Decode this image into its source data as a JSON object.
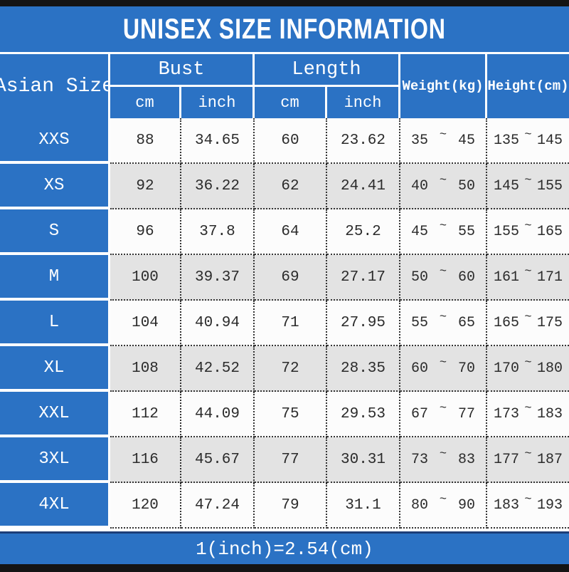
{
  "title": "UNISEX SIZE INFORMATION",
  "footer_note": "1(inch)=2.54(cm)",
  "colors": {
    "accent_blue": "#2b72c4",
    "row_alt_gray": "#e3e3e3",
    "row_white": "#fcfcfc",
    "bar_black": "#141414",
    "text_white": "#ffffff",
    "text_dark": "#2b2b2b"
  },
  "table": {
    "size_header": "Asian Size",
    "bust_header": "Bust",
    "length_header": "Length",
    "weight_header": "Weight(kg)",
    "height_header": "Height(cm)",
    "unit_cm": "cm",
    "unit_inch": "inch",
    "range_separator": "~",
    "rows": [
      {
        "size": "XXS",
        "bust_cm": "88",
        "bust_inch": "34.65",
        "length_cm": "60",
        "length_inch": "23.62",
        "weight_min": "35",
        "weight_max": "45",
        "height_min": "135",
        "height_max": "145"
      },
      {
        "size": "XS",
        "bust_cm": "92",
        "bust_inch": "36.22",
        "length_cm": "62",
        "length_inch": "24.41",
        "weight_min": "40",
        "weight_max": "50",
        "height_min": "145",
        "height_max": "155"
      },
      {
        "size": "S",
        "bust_cm": "96",
        "bust_inch": "37.8",
        "length_cm": "64",
        "length_inch": "25.2",
        "weight_min": "45",
        "weight_max": "55",
        "height_min": "155",
        "height_max": "165"
      },
      {
        "size": "M",
        "bust_cm": "100",
        "bust_inch": "39.37",
        "length_cm": "69",
        "length_inch": "27.17",
        "weight_min": "50",
        "weight_max": "60",
        "height_min": "161",
        "height_max": "171"
      },
      {
        "size": "L",
        "bust_cm": "104",
        "bust_inch": "40.94",
        "length_cm": "71",
        "length_inch": "27.95",
        "weight_min": "55",
        "weight_max": "65",
        "height_min": "165",
        "height_max": "175"
      },
      {
        "size": "XL",
        "bust_cm": "108",
        "bust_inch": "42.52",
        "length_cm": "72",
        "length_inch": "28.35",
        "weight_min": "60",
        "weight_max": "70",
        "height_min": "170",
        "height_max": "180"
      },
      {
        "size": "XXL",
        "bust_cm": "112",
        "bust_inch": "44.09",
        "length_cm": "75",
        "length_inch": "29.53",
        "weight_min": "67",
        "weight_max": "77",
        "height_min": "173",
        "height_max": "183"
      },
      {
        "size": "3XL",
        "bust_cm": "116",
        "bust_inch": "45.67",
        "length_cm": "77",
        "length_inch": "30.31",
        "weight_min": "73",
        "weight_max": "83",
        "height_min": "177",
        "height_max": "187"
      },
      {
        "size": "4XL",
        "bust_cm": "120",
        "bust_inch": "47.24",
        "length_cm": "79",
        "length_inch": "31.1",
        "weight_min": "80",
        "weight_max": "90",
        "height_min": "183",
        "height_max": "193"
      }
    ]
  },
  "chart_data": {
    "type": "table",
    "title": "UNISEX SIZE INFORMATION",
    "note": "1(inch)=2.54(cm)",
    "columns": [
      "Asian Size",
      "Bust cm",
      "Bust inch",
      "Length cm",
      "Length inch",
      "Weight(kg)",
      "Height(cm)"
    ],
    "rows": [
      [
        "XXS",
        88,
        34.65,
        60,
        23.62,
        "35~45",
        "135~145"
      ],
      [
        "XS",
        92,
        36.22,
        62,
        24.41,
        "40~50",
        "145~155"
      ],
      [
        "S",
        96,
        37.8,
        64,
        25.2,
        "45~55",
        "155~165"
      ],
      [
        "M",
        100,
        39.37,
        69,
        27.17,
        "50~60",
        "161~171"
      ],
      [
        "L",
        104,
        40.94,
        71,
        27.95,
        "55~65",
        "165~175"
      ],
      [
        "XL",
        108,
        42.52,
        72,
        28.35,
        "60~70",
        "170~180"
      ],
      [
        "XXL",
        112,
        44.09,
        75,
        29.53,
        "67~77",
        "173~183"
      ],
      [
        "3XL",
        116,
        45.67,
        77,
        30.31,
        "73~83",
        "177~187"
      ],
      [
        "4XL",
        120,
        47.24,
        79,
        31.1,
        "80~90",
        "183~193"
      ]
    ]
  }
}
